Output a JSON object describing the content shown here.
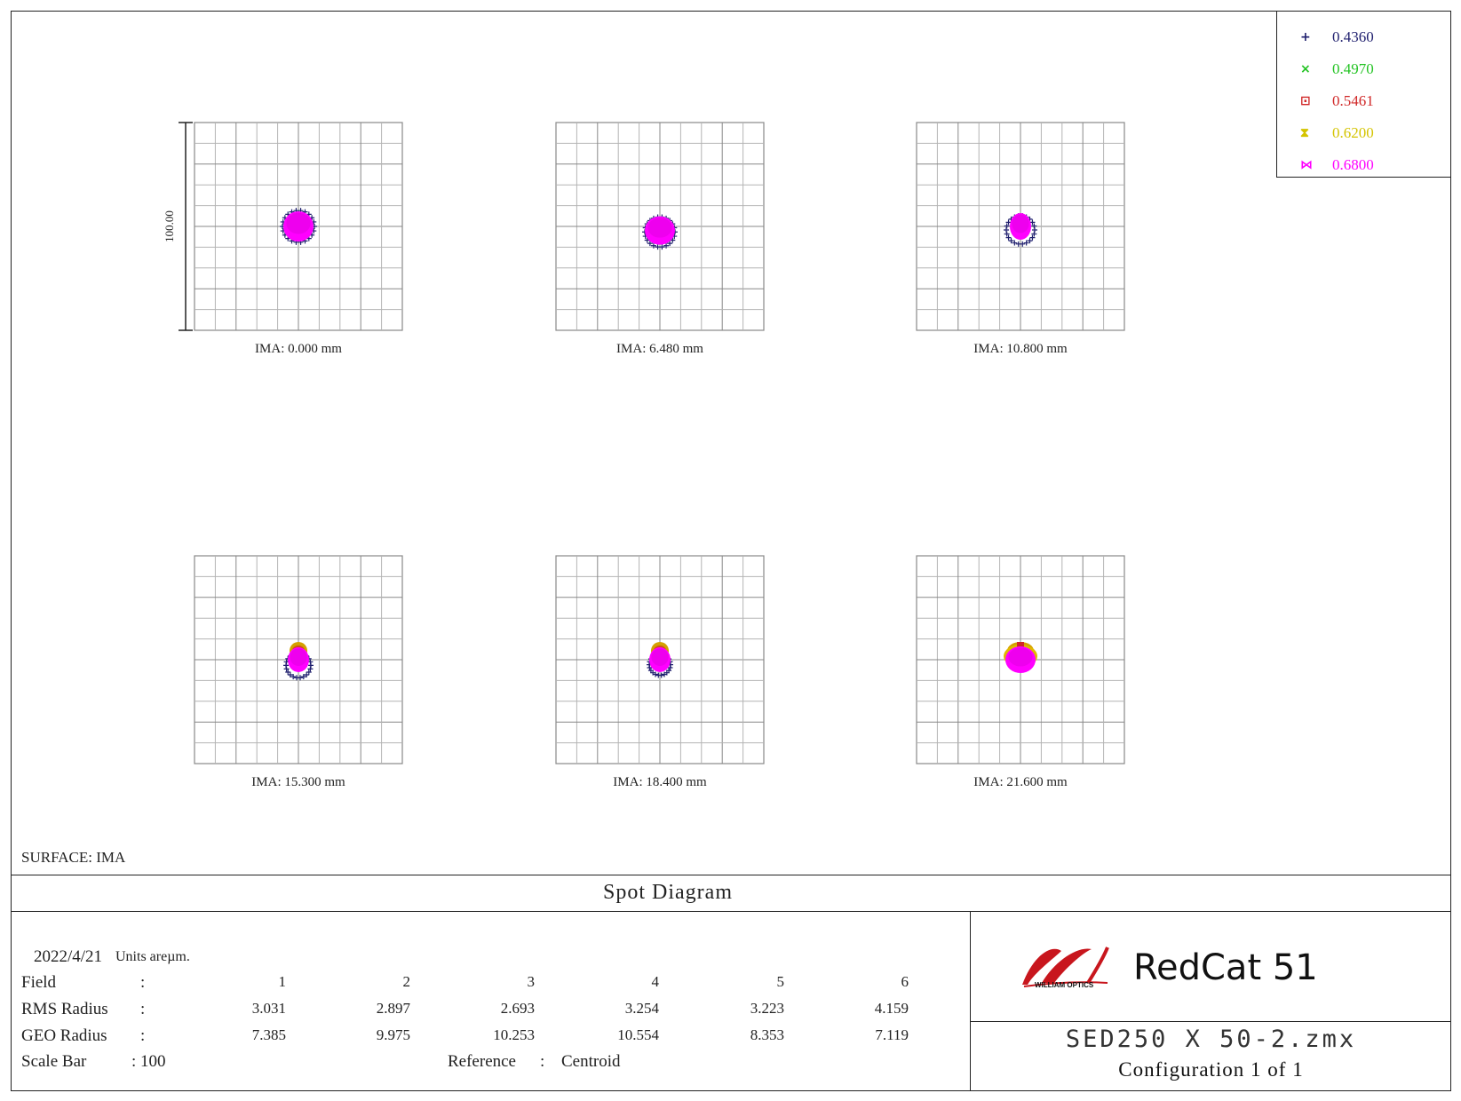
{
  "chart_data": {
    "type": "scatter",
    "title": "Spot Diagram",
    "scale_bar_label": "100.00",
    "fields": [
      {
        "label": "IMA: 0.000 mm"
      },
      {
        "label": "IMA: 6.480 mm"
      },
      {
        "label": "IMA: 10.800 mm"
      },
      {
        "label": "IMA: 15.300 mm"
      },
      {
        "label": "IMA: 18.400 mm"
      },
      {
        "label": "IMA: 21.600 mm"
      }
    ],
    "wavelengths": [
      {
        "label": "0.4360",
        "marker": "+",
        "color": "#1f1f6e"
      },
      {
        "label": "0.4970",
        "marker": "×",
        "color": "#22c322"
      },
      {
        "label": "0.5461",
        "marker": "⊡",
        "color": "#d02828"
      },
      {
        "label": "0.6200",
        "marker": "⧗",
        "color": "#d4c400"
      },
      {
        "label": "0.6800",
        "marker": "⋈",
        "color": "#ff00ff"
      }
    ],
    "rms_radius": [
      3.031,
      2.897,
      2.693,
      3.254,
      3.223,
      4.159
    ],
    "geo_radius": [
      7.385,
      9.975,
      10.253,
      10.554,
      8.353,
      7.119
    ]
  },
  "surface_label": "SURFACE: IMA",
  "info": {
    "date": "2022/4/21",
    "units": "Units areµm.",
    "field_label": "Field",
    "rms_label": "RMS Radius",
    "geo_label": "GEO Radius",
    "scale_label": "Scale Bar",
    "scale_value": ": 100",
    "colon": ":",
    "reference_label": "Reference",
    "reference_value": "Centroid",
    "field_numbers": [
      "1",
      "2",
      "3",
      "4",
      "5",
      "6"
    ],
    "rms_values": [
      "3.031",
      "2.897",
      "2.693",
      "3.254",
      "3.223",
      "4.159"
    ],
    "geo_values": [
      "7.385",
      "9.975",
      "10.253",
      "10.554",
      "8.353",
      "7.119"
    ]
  },
  "brand": {
    "product": "RedCat 51",
    "logo_text": "WILLIAM OPTICS",
    "file": "SED250 X 50-2.zmx",
    "config": "Configuration 1 of 1"
  }
}
